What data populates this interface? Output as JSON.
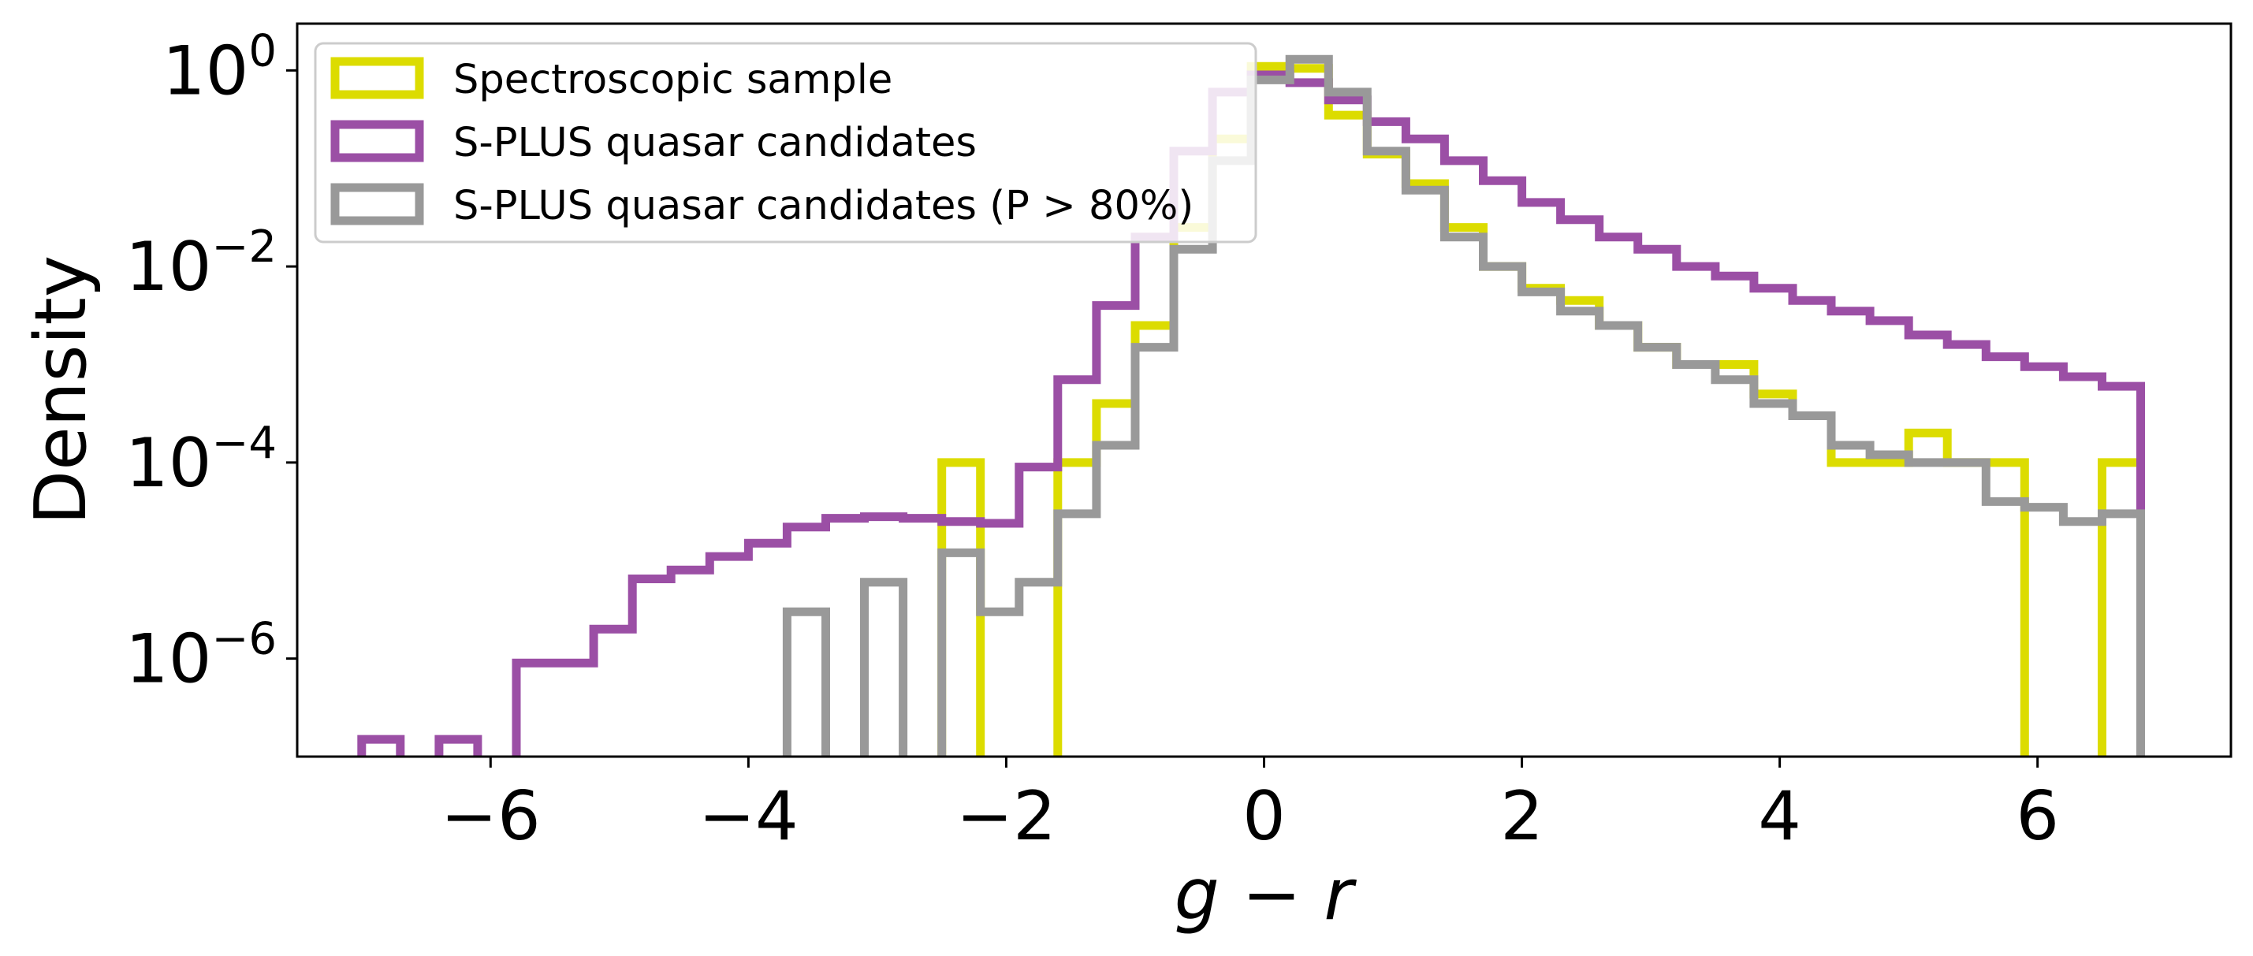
{
  "chart_data": {
    "type": "histogram-step",
    "xlabel_base": "g",
    "xlabel_op": " − ",
    "xlabel_sub": "r",
    "ylabel": "Density",
    "yscale": "log",
    "xlim": [
      -7.5,
      7.5
    ],
    "ylim": [
      1e-07,
      3
    ],
    "x_ticks": [
      {
        "value": -6,
        "label": "−6"
      },
      {
        "value": -4,
        "label": "−4"
      },
      {
        "value": -2,
        "label": "−2"
      },
      {
        "value": 0,
        "label": "0"
      },
      {
        "value": 2,
        "label": "2"
      },
      {
        "value": 4,
        "label": "4"
      },
      {
        "value": 6,
        "label": "6"
      }
    ],
    "y_ticks": [
      {
        "value": 1,
        "base": "10",
        "exp": "0"
      },
      {
        "value": 0.01,
        "base": "10",
        "exp": "−2"
      },
      {
        "value": 0.0001,
        "base": "10",
        "exp": "−4"
      },
      {
        "value": 1e-06,
        "base": "10",
        "exp": "−6"
      }
    ],
    "legend_position": "upper-left",
    "series": [
      {
        "name": "Spectroscopic sample",
        "color": "#dcdc00",
        "edges": [
          -2.5,
          -2.2,
          -1.6,
          -1.3,
          -1.0,
          -0.7,
          -0.4,
          -0.1,
          0.2,
          0.5,
          0.8,
          1.1,
          1.4,
          1.7,
          2.0,
          2.3,
          2.6,
          2.9,
          3.2,
          3.5,
          3.8,
          4.1,
          4.4,
          4.7,
          5.0,
          5.3,
          5.6,
          5.9,
          6.5,
          6.8
        ],
        "values": [
          0.0001,
          null,
          0.0001,
          0.0004,
          0.0025,
          0.025,
          0.2,
          1.1,
          1.05,
          0.35,
          0.14,
          0.07,
          0.025,
          0.01,
          0.006,
          0.0045,
          0.0025,
          0.0015,
          0.001,
          0.001,
          0.0005,
          0.0003,
          0.0001,
          0.0001,
          0.0002,
          0.0001,
          0.0001,
          null,
          0.0001
        ]
      },
      {
        "name": "S-PLUS quasar candidates",
        "color": "#9b4fa5",
        "edges": [
          -7.0,
          -6.7,
          -6.4,
          -6.1,
          -5.8,
          -5.5,
          -5.2,
          -4.9,
          -4.6,
          -4.3,
          -4.0,
          -3.7,
          -3.4,
          -3.1,
          -2.8,
          -2.5,
          -2.2,
          -1.9,
          -1.6,
          -1.3,
          -1.0,
          -0.7,
          -0.4,
          -0.1,
          0.2,
          0.5,
          0.8,
          1.1,
          1.4,
          1.7,
          2.0,
          2.3,
          2.6,
          2.9,
          3.2,
          3.5,
          3.8,
          4.1,
          4.4,
          4.7,
          5.0,
          5.3,
          5.6,
          5.9,
          6.2,
          6.5,
          6.8
        ],
        "values": [
          1.5e-07,
          null,
          1.5e-07,
          null,
          9e-07,
          9e-07,
          2e-06,
          6.5e-06,
          8e-06,
          1.1e-05,
          1.5e-05,
          2.2e-05,
          2.7e-05,
          2.8e-05,
          2.7e-05,
          2.5e-05,
          2.4e-05,
          9e-05,
          0.0007,
          0.004,
          0.02,
          0.15,
          0.6,
          0.9,
          0.75,
          0.5,
          0.3,
          0.2,
          0.12,
          0.075,
          0.045,
          0.03,
          0.02,
          0.015,
          0.01,
          0.008,
          0.006,
          0.0045,
          0.0035,
          0.0028,
          0.002,
          0.0016,
          0.0012,
          0.00095,
          0.00075,
          0.0006
        ]
      },
      {
        "name": "S-PLUS quasar candidates (P > 80%)",
        "color": "#999999",
        "edges": [
          -3.7,
          -3.4,
          -3.1,
          -2.8,
          -2.5,
          -2.2,
          -1.9,
          -1.6,
          -1.3,
          -1.0,
          -0.7,
          -0.4,
          -0.1,
          0.2,
          0.5,
          0.8,
          1.1,
          1.4,
          1.7,
          2.0,
          2.3,
          2.6,
          2.9,
          3.2,
          3.5,
          3.8,
          4.1,
          4.4,
          4.7,
          5.0,
          5.3,
          5.6,
          5.9,
          6.2,
          6.5,
          6.8
        ],
        "values": [
          3e-06,
          null,
          6e-06,
          null,
          1.2e-05,
          3e-06,
          6e-06,
          3e-05,
          0.00015,
          0.0015,
          0.015,
          0.12,
          0.8,
          1.3,
          0.6,
          0.15,
          0.06,
          0.02,
          0.01,
          0.0055,
          0.0035,
          0.0025,
          0.0015,
          0.001,
          0.0007,
          0.0004,
          0.0003,
          0.00015,
          0.00012,
          0.0001,
          0.0001,
          4e-05,
          3.5e-05,
          2.5e-05,
          3e-05
        ]
      }
    ]
  }
}
